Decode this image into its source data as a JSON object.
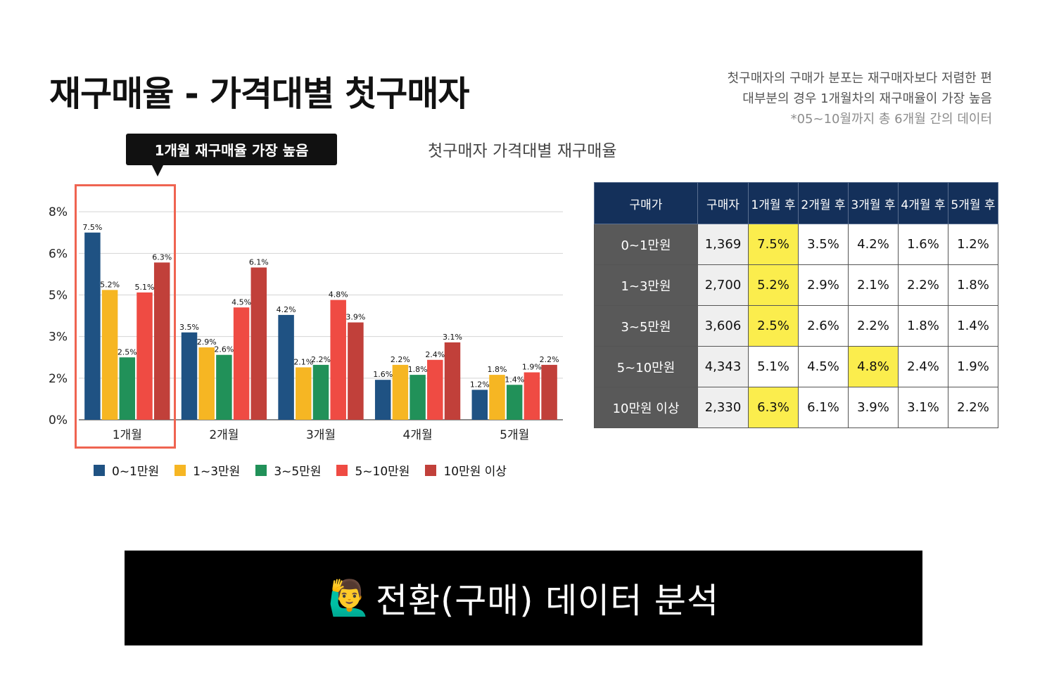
{
  "page": {
    "title": "재구매율 - 가격대별 첫구매자",
    "notes": [
      "첫구매자의 구매가 분포는 재구매자보다 저렴한 편",
      "대부분의 경우 1개월차의 재구매율이 가장 높음",
      "*05~10월까지 총 6개월 간의 데이터"
    ],
    "callout": "1개월 재구매율 가장 높음",
    "chart_title": "첫구매자 가격대별 재구매율",
    "banner": {
      "icon": "🙋‍♂️",
      "text": "전환(구매) 데이터 분석"
    }
  },
  "colors": {
    "series": [
      "#1f5283",
      "#f6b623",
      "#219159",
      "#ef4b43",
      "#c1403a"
    ],
    "table_header": "#14305a",
    "table_rowhead": "#595959",
    "table_highlight": "#fbed4d",
    "callout_border": "#ef6451"
  },
  "chart_data": {
    "type": "bar",
    "categories": [
      "1개월",
      "2개월",
      "3개월",
      "4개월",
      "5개월"
    ],
    "series": [
      {
        "name": "0~1만원",
        "values": [
          7.5,
          3.5,
          4.2,
          1.6,
          1.2
        ]
      },
      {
        "name": "1~3만원",
        "values": [
          5.2,
          2.9,
          2.1,
          2.2,
          1.8
        ]
      },
      {
        "name": "3~5만원",
        "values": [
          2.5,
          2.6,
          2.2,
          1.8,
          1.4
        ]
      },
      {
        "name": "5~10만원",
        "values": [
          5.1,
          4.5,
          4.8,
          2.4,
          1.9
        ]
      },
      {
        "name": "10만원 이상",
        "values": [
          6.3,
          6.1,
          3.9,
          3.1,
          2.2
        ]
      }
    ],
    "y_ticks": [
      "0%",
      "2%",
      "3%",
      "5%",
      "6%",
      "8%"
    ],
    "ylim": [
      0,
      8.5
    ],
    "grid": true,
    "legend": "bottom"
  },
  "table": {
    "headers": [
      "구매가",
      "구매자",
      "1개월 후",
      "2개월 후",
      "3개월 후",
      "4개월 후",
      "5개월 후"
    ],
    "rows": [
      {
        "label": "0~1만원",
        "count": "1,369",
        "values": [
          "7.5%",
          "3.5%",
          "4.2%",
          "1.6%",
          "1.2%"
        ],
        "highlight": 0
      },
      {
        "label": "1~3만원",
        "count": "2,700",
        "values": [
          "5.2%",
          "2.9%",
          "2.1%",
          "2.2%",
          "1.8%"
        ],
        "highlight": 0
      },
      {
        "label": "3~5만원",
        "count": "3,606",
        "values": [
          "2.5%",
          "2.6%",
          "2.2%",
          "1.8%",
          "1.4%"
        ],
        "highlight": 0
      },
      {
        "label": "5~10만원",
        "count": "4,343",
        "values": [
          "5.1%",
          "4.5%",
          "4.8%",
          "2.4%",
          "1.9%"
        ],
        "highlight": 2
      },
      {
        "label": "10만원 이상",
        "count": "2,330",
        "values": [
          "6.3%",
          "6.1%",
          "3.9%",
          "3.1%",
          "2.2%"
        ],
        "highlight": 0
      }
    ]
  }
}
